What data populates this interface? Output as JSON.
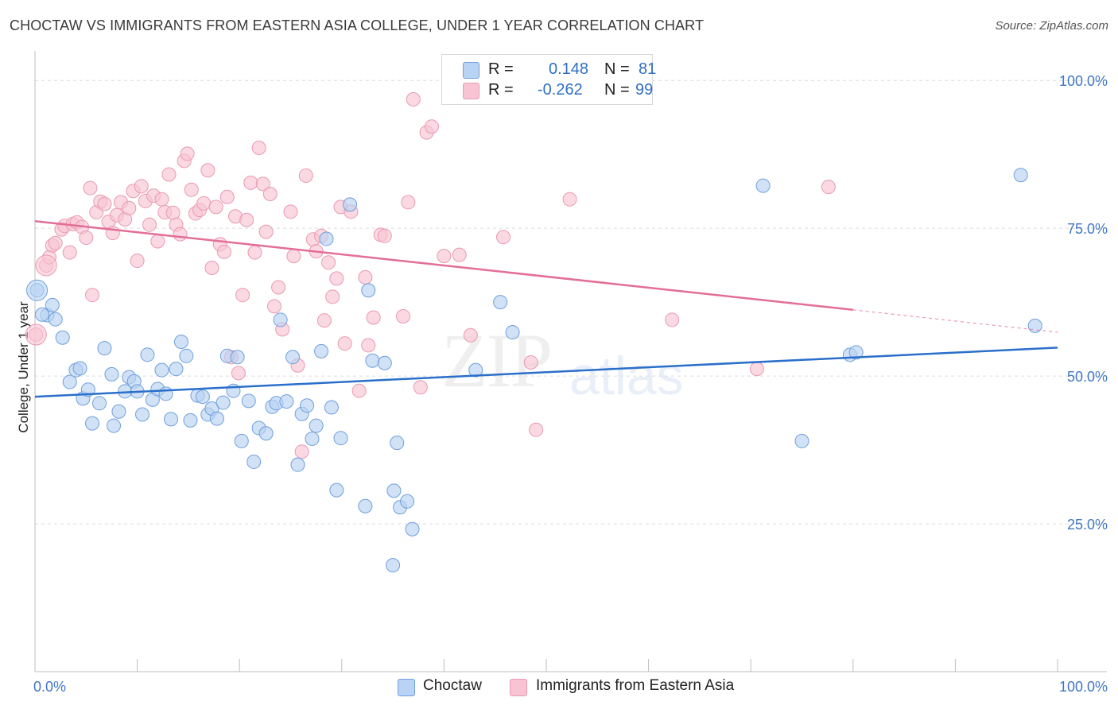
{
  "title": "CHOCTAW VS IMMIGRANTS FROM EASTERN ASIA COLLEGE, UNDER 1 YEAR CORRELATION CHART",
  "source": "Source: ZipAtlas.com",
  "watermark": {
    "zip": "ZIP",
    "atlas": "atlas"
  },
  "legend": {
    "r_label": "R =",
    "n_label": "N =",
    "rows": [
      {
        "r": "0.148",
        "n": "81"
      },
      {
        "r": "-0.262",
        "n": "99"
      }
    ]
  },
  "bottom_legend": [
    "Choctaw",
    "Immigrants from Eastern Asia"
  ],
  "colors": {
    "blue_fill": "#b8d3f3",
    "blue_stroke": "#6f9fdc",
    "blue_line": "#2a6fca",
    "pink_fill": "#f8c4d3",
    "pink_stroke": "#e99ab2",
    "pink_line": "#e36e98",
    "tick_label": "#3f76c6",
    "grid": "#dcdcdc"
  },
  "chart_data": {
    "type": "scatter",
    "xlabel": "",
    "ylabel": "College, Under 1 year",
    "xlim": [
      0,
      100
    ],
    "ylim": [
      0,
      105
    ],
    "x_tick_labels": [
      {
        "value": 0,
        "label": "0.0%"
      },
      {
        "value": 100,
        "label": "100.0%"
      }
    ],
    "y_tick_labels": [
      {
        "value": 25,
        "label": "25.0%"
      },
      {
        "value": 50,
        "label": "50.0%"
      },
      {
        "value": 75,
        "label": "75.0%"
      },
      {
        "value": 100,
        "label": "100.0%"
      }
    ],
    "grid": true,
    "series": [
      {
        "name": "Choctaw",
        "color": "#b8d3f3",
        "trend": {
          "x0": 0,
          "y0": 46.5,
          "x1": 100,
          "y1": 54.8
        },
        "points": [
          [
            0.2,
            64.5
          ],
          [
            1.2,
            60.3
          ],
          [
            1.7,
            62.0
          ],
          [
            2.0,
            59.6
          ],
          [
            2.7,
            56.5
          ],
          [
            3.4,
            49.0
          ],
          [
            4.0,
            51.0
          ],
          [
            4.4,
            51.3
          ],
          [
            4.7,
            46.2
          ],
          [
            5.2,
            47.7
          ],
          [
            5.6,
            42.0
          ],
          [
            6.3,
            45.4
          ],
          [
            6.8,
            54.7
          ],
          [
            7.5,
            50.3
          ],
          [
            7.7,
            41.6
          ],
          [
            8.2,
            44.0
          ],
          [
            8.8,
            47.4
          ],
          [
            9.2,
            49.8
          ],
          [
            9.7,
            49.1
          ],
          [
            10.0,
            47.4
          ],
          [
            10.5,
            43.5
          ],
          [
            11.0,
            53.6
          ],
          [
            11.5,
            46.0
          ],
          [
            12.0,
            47.8
          ],
          [
            12.4,
            51.0
          ],
          [
            12.8,
            47.0
          ],
          [
            13.3,
            42.7
          ],
          [
            13.8,
            51.2
          ],
          [
            14.3,
            55.8
          ],
          [
            14.8,
            53.4
          ],
          [
            15.2,
            42.5
          ],
          [
            15.9,
            46.7
          ],
          [
            16.4,
            46.5
          ],
          [
            16.9,
            43.5
          ],
          [
            17.3,
            44.5
          ],
          [
            17.8,
            42.8
          ],
          [
            18.4,
            45.5
          ],
          [
            18.8,
            53.4
          ],
          [
            19.4,
            47.5
          ],
          [
            19.8,
            53.2
          ],
          [
            20.2,
            39.0
          ],
          [
            20.9,
            45.8
          ],
          [
            21.4,
            35.5
          ],
          [
            21.9,
            41.2
          ],
          [
            22.6,
            40.3
          ],
          [
            23.2,
            44.8
          ],
          [
            23.6,
            45.4
          ],
          [
            24.0,
            59.5
          ],
          [
            24.6,
            45.7
          ],
          [
            25.2,
            53.2
          ],
          [
            25.7,
            35.0
          ],
          [
            26.1,
            43.6
          ],
          [
            26.6,
            45.0
          ],
          [
            27.1,
            39.4
          ],
          [
            27.5,
            41.6
          ],
          [
            28.0,
            54.2
          ],
          [
            28.5,
            73.2
          ],
          [
            29.0,
            44.7
          ],
          [
            29.5,
            30.7
          ],
          [
            29.9,
            39.5
          ],
          [
            30.8,
            79.0
          ],
          [
            32.3,
            28.0
          ],
          [
            32.6,
            64.5
          ],
          [
            33.0,
            52.6
          ],
          [
            34.2,
            52.2
          ],
          [
            35.1,
            30.6
          ],
          [
            35.4,
            38.7
          ],
          [
            35.7,
            27.8
          ],
          [
            36.4,
            28.8
          ],
          [
            36.9,
            24.1
          ],
          [
            35.0,
            18.0
          ],
          [
            43.1,
            51.0
          ],
          [
            45.5,
            62.5
          ],
          [
            46.7,
            57.4
          ],
          [
            71.2,
            82.2
          ],
          [
            75.0,
            39.0
          ],
          [
            79.7,
            53.6
          ],
          [
            80.3,
            54.0
          ],
          [
            96.4,
            84.0
          ],
          [
            97.8,
            58.5
          ],
          [
            0.7,
            60.4
          ]
        ],
        "big_points": [
          [
            0.2,
            64.5
          ]
        ]
      },
      {
        "name": "Immigrants from Eastern Asia",
        "color": "#f8c4d3",
        "trend": {
          "x0": 0,
          "y0": 76.2,
          "x1": 80,
          "y1": 61.2,
          "dash_to_x": 100,
          "dash_to_y": 57.4
        },
        "points": [
          [
            0.1,
            57.0
          ],
          [
            1.1,
            68.7
          ],
          [
            1.4,
            70.1
          ],
          [
            1.7,
            72.1
          ],
          [
            2.0,
            72.5
          ],
          [
            2.6,
            74.8
          ],
          [
            2.9,
            75.4
          ],
          [
            3.4,
            70.9
          ],
          [
            3.7,
            75.7
          ],
          [
            4.1,
            76.0
          ],
          [
            4.6,
            75.2
          ],
          [
            5.0,
            73.4
          ],
          [
            5.4,
            81.8
          ],
          [
            5.6,
            63.7
          ],
          [
            6.0,
            77.7
          ],
          [
            6.4,
            79.5
          ],
          [
            6.8,
            79.1
          ],
          [
            7.2,
            76.1
          ],
          [
            7.6,
            74.2
          ],
          [
            8.0,
            77.2
          ],
          [
            8.4,
            79.4
          ],
          [
            8.8,
            76.5
          ],
          [
            9.2,
            78.4
          ],
          [
            9.6,
            81.3
          ],
          [
            10.0,
            69.5
          ],
          [
            10.4,
            82.1
          ],
          [
            10.8,
            79.6
          ],
          [
            11.2,
            75.6
          ],
          [
            11.6,
            80.5
          ],
          [
            12.0,
            72.8
          ],
          [
            12.4,
            79.9
          ],
          [
            12.7,
            77.7
          ],
          [
            13.1,
            84.1
          ],
          [
            13.5,
            77.6
          ],
          [
            13.8,
            75.6
          ],
          [
            14.2,
            74.0
          ],
          [
            14.6,
            86.4
          ],
          [
            14.9,
            87.6
          ],
          [
            15.3,
            81.5
          ],
          [
            15.7,
            77.5
          ],
          [
            16.1,
            78.1
          ],
          [
            16.5,
            79.2
          ],
          [
            16.9,
            84.8
          ],
          [
            17.3,
            68.3
          ],
          [
            17.7,
            78.6
          ],
          [
            18.1,
            72.3
          ],
          [
            18.5,
            71.0
          ],
          [
            18.8,
            80.3
          ],
          [
            19.2,
            53.2
          ],
          [
            19.6,
            77.0
          ],
          [
            19.9,
            50.5
          ],
          [
            20.3,
            63.7
          ],
          [
            20.7,
            76.4
          ],
          [
            21.1,
            82.7
          ],
          [
            21.5,
            70.9
          ],
          [
            21.9,
            88.6
          ],
          [
            22.3,
            82.5
          ],
          [
            22.6,
            74.4
          ],
          [
            23.0,
            80.8
          ],
          [
            23.4,
            61.8
          ],
          [
            23.8,
            65.0
          ],
          [
            24.2,
            57.9
          ],
          [
            25.0,
            77.8
          ],
          [
            25.3,
            70.3
          ],
          [
            25.7,
            51.8
          ],
          [
            26.1,
            37.2
          ],
          [
            26.5,
            83.9
          ],
          [
            27.2,
            73.1
          ],
          [
            27.5,
            71.1
          ],
          [
            28.0,
            73.7
          ],
          [
            28.3,
            59.4
          ],
          [
            28.7,
            69.2
          ],
          [
            29.1,
            63.4
          ],
          [
            29.5,
            66.5
          ],
          [
            29.9,
            78.6
          ],
          [
            30.3,
            55.5
          ],
          [
            30.9,
            77.8
          ],
          [
            31.7,
            47.5
          ],
          [
            32.3,
            66.7
          ],
          [
            32.6,
            55.2
          ],
          [
            33.1,
            59.9
          ],
          [
            33.8,
            73.9
          ],
          [
            34.2,
            73.7
          ],
          [
            36.0,
            60.1
          ],
          [
            36.5,
            79.4
          ],
          [
            37.0,
            96.8
          ],
          [
            37.7,
            48.1
          ],
          [
            38.3,
            91.2
          ],
          [
            38.8,
            92.2
          ],
          [
            40.0,
            70.3
          ],
          [
            41.5,
            70.5
          ],
          [
            42.6,
            56.9
          ],
          [
            45.8,
            73.5
          ],
          [
            48.5,
            52.3
          ],
          [
            49.0,
            40.9
          ],
          [
            52.3,
            79.9
          ],
          [
            62.3,
            59.5
          ],
          [
            70.6,
            51.2
          ],
          [
            77.6,
            82.0
          ]
        ],
        "big_points": [
          [
            0.1,
            57.0
          ],
          [
            1.1,
            68.7
          ]
        ]
      }
    ]
  }
}
